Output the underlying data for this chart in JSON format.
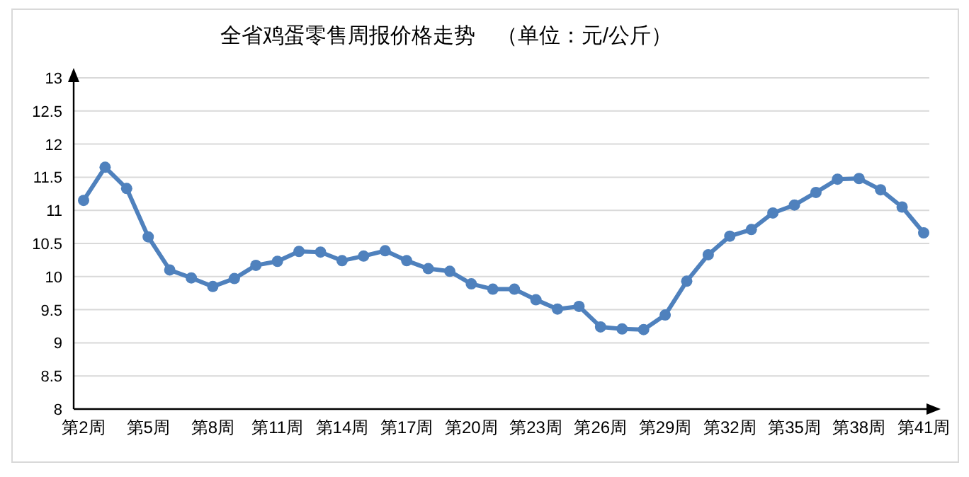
{
  "chart_data": {
    "type": "line",
    "title": "全省鸡蛋零售周报价格走势　（单位：元/公斤）",
    "categories": [
      "第2周",
      null,
      null,
      "第5周",
      null,
      null,
      "第8周",
      null,
      null,
      "第11周",
      null,
      null,
      "第14周",
      null,
      null,
      "第17周",
      null,
      null,
      "第20周",
      null,
      null,
      "第23周",
      null,
      null,
      "第26周",
      null,
      null,
      "第29周",
      null,
      null,
      "第32周",
      null,
      null,
      "第35周",
      null,
      null,
      "第38周",
      null,
      null,
      "第41周"
    ],
    "values": [
      11.15,
      11.65,
      11.33,
      10.6,
      10.1,
      9.98,
      9.85,
      9.97,
      10.17,
      10.23,
      10.38,
      10.37,
      10.24,
      10.31,
      10.39,
      10.24,
      10.12,
      10.08,
      9.89,
      9.81,
      9.81,
      9.65,
      9.51,
      9.55,
      9.24,
      9.21,
      9.2,
      9.42,
      9.93,
      10.33,
      10.61,
      10.71,
      10.96,
      11.08,
      11.27,
      11.47,
      11.48,
      11.31,
      11.05,
      10.66
    ],
    "color": "#4f81bd",
    "ylim": [
      8,
      13
    ],
    "yticks": [
      8,
      8.5,
      9,
      9.5,
      10,
      10.5,
      11,
      11.5,
      12,
      12.5,
      13
    ],
    "grid": "y",
    "marker": "circle",
    "line_style": "solid"
  }
}
